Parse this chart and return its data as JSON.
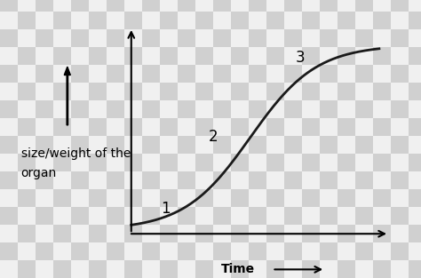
{
  "xlabel": "Time",
  "ylabel_line1": "size/weight of the",
  "ylabel_line2": "organ",
  "curve_color": "#1a1a1a",
  "curve_linewidth": 2.0,
  "background_color": "#e8e8e8",
  "label_1": "1",
  "label_2": "2",
  "label_3": "3",
  "label_fontsize": 12,
  "axis_label_fontsize": 10,
  "sigmoid_midpoint": 0.48,
  "sigmoid_steepness": 7.5,
  "checkerboard_light": "#f0f0f0",
  "checkerboard_dark": "#d0d0d0",
  "checker_size": 20
}
